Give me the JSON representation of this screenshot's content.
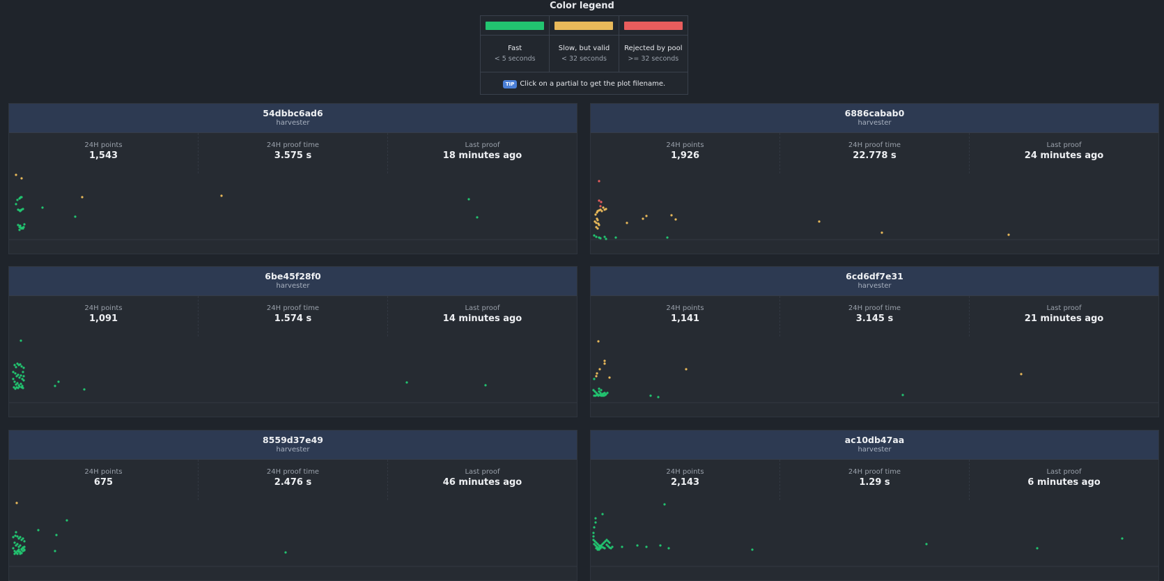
{
  "legend": {
    "title": "Color legend",
    "items": [
      {
        "label": "Fast",
        "sub": "< 5 seconds",
        "color": "#22c470"
      },
      {
        "label": "Slow, but valid",
        "sub": "< 32 seconds",
        "color": "#e9b95a"
      },
      {
        "label": "Rejected by pool",
        "sub": ">= 32 seconds",
        "color": "#e85d5d"
      }
    ],
    "tip_badge": "TIP",
    "tip_text": "Click on a partial to get the plot filename."
  },
  "stat_labels": {
    "points": "24H points",
    "proof_time": "24H proof time",
    "last_proof": "Last proof"
  },
  "harvesters": [
    {
      "name": "54dbbc6ad6",
      "role": "harvester",
      "points": "1,543",
      "proof_time": "3.575 s",
      "last_proof": "18 minutes ago",
      "partials": {
        "fast": [
          [
            10,
            45
          ],
          [
            12,
            39
          ],
          [
            15,
            37
          ],
          [
            16,
            36
          ],
          [
            17,
            35
          ],
          [
            18,
            35
          ],
          [
            13,
            53
          ],
          [
            15,
            54
          ],
          [
            16,
            55
          ],
          [
            17,
            54
          ],
          [
            18,
            53
          ],
          [
            20,
            52
          ],
          [
            13,
            75
          ],
          [
            15,
            78
          ],
          [
            16,
            76
          ],
          [
            17,
            79
          ],
          [
            18,
            80
          ],
          [
            19,
            79
          ],
          [
            20,
            80
          ],
          [
            21,
            78
          ],
          [
            15,
            82
          ],
          [
            22,
            74
          ],
          [
            48,
            50
          ],
          [
            95,
            63
          ],
          [
            660,
            38
          ],
          [
            672,
            64
          ]
        ],
        "slow": [
          [
            10,
            3
          ],
          [
            18,
            8
          ],
          [
            105,
            35
          ],
          [
            305,
            33
          ]
        ],
        "rejected": []
      }
    },
    {
      "name": "6886cabab0",
      "role": "harvester",
      "points": "1,926",
      "proof_time": "22.778 s",
      "last_proof": "24 minutes ago",
      "partials": {
        "fast": [
          [
            5,
            90
          ],
          [
            8,
            92
          ],
          [
            12,
            93
          ],
          [
            14,
            94
          ],
          [
            20,
            92
          ],
          [
            22,
            95
          ],
          [
            110,
            93
          ],
          [
            36,
            93
          ]
        ],
        "slow": [
          [
            6,
            70
          ],
          [
            8,
            72
          ],
          [
            9,
            66
          ],
          [
            10,
            68
          ],
          [
            11,
            73
          ],
          [
            7,
            60
          ],
          [
            9,
            57
          ],
          [
            10,
            55
          ],
          [
            12,
            54
          ],
          [
            14,
            53
          ],
          [
            16,
            55
          ],
          [
            18,
            50
          ],
          [
            20,
            53
          ],
          [
            22,
            52
          ],
          [
            8,
            78
          ],
          [
            12,
            75
          ],
          [
            10,
            80
          ],
          [
            52,
            72
          ],
          [
            75,
            66
          ],
          [
            80,
            62
          ],
          [
            116,
            61
          ],
          [
            122,
            67
          ],
          [
            328,
            70
          ],
          [
            418,
            86
          ],
          [
            600,
            89
          ]
        ],
        "rejected": [
          [
            12,
            12
          ],
          [
            12,
            40
          ],
          [
            15,
            42
          ],
          [
            14,
            48
          ]
        ]
      }
    },
    {
      "name": "6be45f28f0",
      "role": "harvester",
      "points": "1,091",
      "proof_time": "1.574 s",
      "last_proof": "14 minutes ago",
      "partials": {
        "fast": [
          [
            17,
            7
          ],
          [
            8,
            42
          ],
          [
            10,
            45
          ],
          [
            12,
            40
          ],
          [
            14,
            42
          ],
          [
            16,
            41
          ],
          [
            18,
            44
          ],
          [
            6,
            52
          ],
          [
            9,
            54
          ],
          [
            11,
            58
          ],
          [
            13,
            56
          ],
          [
            15,
            60
          ],
          [
            17,
            57
          ],
          [
            19,
            62
          ],
          [
            6,
            62
          ],
          [
            8,
            66
          ],
          [
            10,
            70
          ],
          [
            12,
            68
          ],
          [
            14,
            71
          ],
          [
            17,
            69
          ],
          [
            19,
            72
          ],
          [
            7,
            74
          ],
          [
            9,
            76
          ],
          [
            11,
            74
          ],
          [
            13,
            75
          ],
          [
            15,
            73
          ],
          [
            18,
            74
          ],
          [
            20,
            75
          ],
          [
            21,
            46
          ],
          [
            20,
            52
          ],
          [
            21,
            58
          ],
          [
            21,
            64
          ],
          [
            66,
            72
          ],
          [
            71,
            66
          ],
          [
            108,
            77
          ],
          [
            571,
            67
          ],
          [
            684,
            71
          ]
        ],
        "slow": [],
        "rejected": []
      }
    },
    {
      "name": "6cd6df7e31",
      "role": "harvester",
      "points": "1,141",
      "proof_time": "3.145 s",
      "last_proof": "21 minutes ago",
      "partials": {
        "fast": [
          [
            4,
            78
          ],
          [
            6,
            80
          ],
          [
            8,
            82
          ],
          [
            10,
            84
          ],
          [
            12,
            80
          ],
          [
            14,
            82
          ],
          [
            16,
            84
          ],
          [
            18,
            83
          ],
          [
            20,
            82
          ],
          [
            22,
            84
          ],
          [
            24,
            82
          ],
          [
            5,
            86
          ],
          [
            7,
            86
          ],
          [
            9,
            85
          ],
          [
            11,
            86
          ],
          [
            13,
            85
          ],
          [
            15,
            86
          ],
          [
            17,
            86
          ],
          [
            19,
            86
          ],
          [
            21,
            85
          ],
          [
            12,
            76
          ],
          [
            15,
            78
          ],
          [
            5,
            62
          ],
          [
            86,
            86
          ],
          [
            97,
            88
          ],
          [
            448,
            85
          ]
        ],
        "slow": [
          [
            11,
            8
          ],
          [
            9,
            54
          ],
          [
            8,
            58
          ],
          [
            13,
            48
          ],
          [
            20,
            40
          ],
          [
            20,
            36
          ],
          [
            27,
            60
          ],
          [
            137,
            48
          ],
          [
            618,
            55
          ]
        ],
        "rejected": []
      }
    },
    {
      "name": "8559d37e49",
      "role": "harvester",
      "points": "675",
      "proof_time": "2.476 s",
      "last_proof": "46 minutes ago",
      "partials": {
        "fast": [
          [
            10,
            47
          ],
          [
            12,
            53
          ],
          [
            14,
            56
          ],
          [
            16,
            54
          ],
          [
            18,
            58
          ],
          [
            20,
            56
          ],
          [
            22,
            60
          ],
          [
            8,
            62
          ],
          [
            10,
            66
          ],
          [
            12,
            64
          ],
          [
            14,
            68
          ],
          [
            16,
            66
          ],
          [
            18,
            71
          ],
          [
            20,
            69
          ],
          [
            22,
            73
          ],
          [
            6,
            70
          ],
          [
            8,
            74
          ],
          [
            10,
            76
          ],
          [
            12,
            74
          ],
          [
            14,
            72
          ],
          [
            16,
            75
          ],
          [
            18,
            72
          ],
          [
            20,
            70
          ],
          [
            22,
            68
          ],
          [
            8,
            78
          ],
          [
            10,
            76
          ],
          [
            12,
            78
          ],
          [
            14,
            75
          ],
          [
            16,
            78
          ],
          [
            18,
            77
          ],
          [
            20,
            74
          ],
          [
            22,
            72
          ],
          [
            6,
            54
          ],
          [
            9,
            52
          ],
          [
            42,
            44
          ],
          [
            83,
            30
          ],
          [
            68,
            51
          ],
          [
            66,
            74
          ],
          [
            397,
            76
          ]
        ],
        "slow": [
          [
            11,
            5
          ]
        ],
        "rejected": []
      }
    },
    {
      "name": "ac10db47aa",
      "role": "harvester",
      "points": "2,143",
      "proof_time": "1.29 s",
      "last_proof": "6 minutes ago",
      "partials": {
        "fast": [
          [
            106,
            7
          ],
          [
            17,
            21
          ],
          [
            7,
            27
          ],
          [
            7,
            33
          ],
          [
            5,
            40
          ],
          [
            4,
            48
          ],
          [
            4,
            53
          ],
          [
            4,
            58
          ],
          [
            6,
            60
          ],
          [
            8,
            62
          ],
          [
            10,
            64
          ],
          [
            12,
            66
          ],
          [
            14,
            67
          ],
          [
            16,
            68
          ],
          [
            18,
            69
          ],
          [
            20,
            70
          ],
          [
            5,
            64
          ],
          [
            7,
            66
          ],
          [
            9,
            68
          ],
          [
            11,
            70
          ],
          [
            13,
            68
          ],
          [
            15,
            66
          ],
          [
            17,
            64
          ],
          [
            19,
            62
          ],
          [
            21,
            60
          ],
          [
            23,
            65
          ],
          [
            25,
            67
          ],
          [
            27,
            69
          ],
          [
            29,
            70
          ],
          [
            31,
            68
          ],
          [
            8,
            70
          ],
          [
            10,
            72
          ],
          [
            12,
            72
          ],
          [
            14,
            70
          ],
          [
            23,
            58
          ],
          [
            25,
            60
          ],
          [
            27,
            62
          ],
          [
            45,
            68
          ],
          [
            67,
            66
          ],
          [
            80,
            68
          ],
          [
            100,
            66
          ],
          [
            112,
            70
          ],
          [
            232,
            72
          ],
          [
            482,
            64
          ],
          [
            641,
            70
          ],
          [
            763,
            56
          ]
        ],
        "slow": [],
        "rejected": []
      }
    }
  ]
}
